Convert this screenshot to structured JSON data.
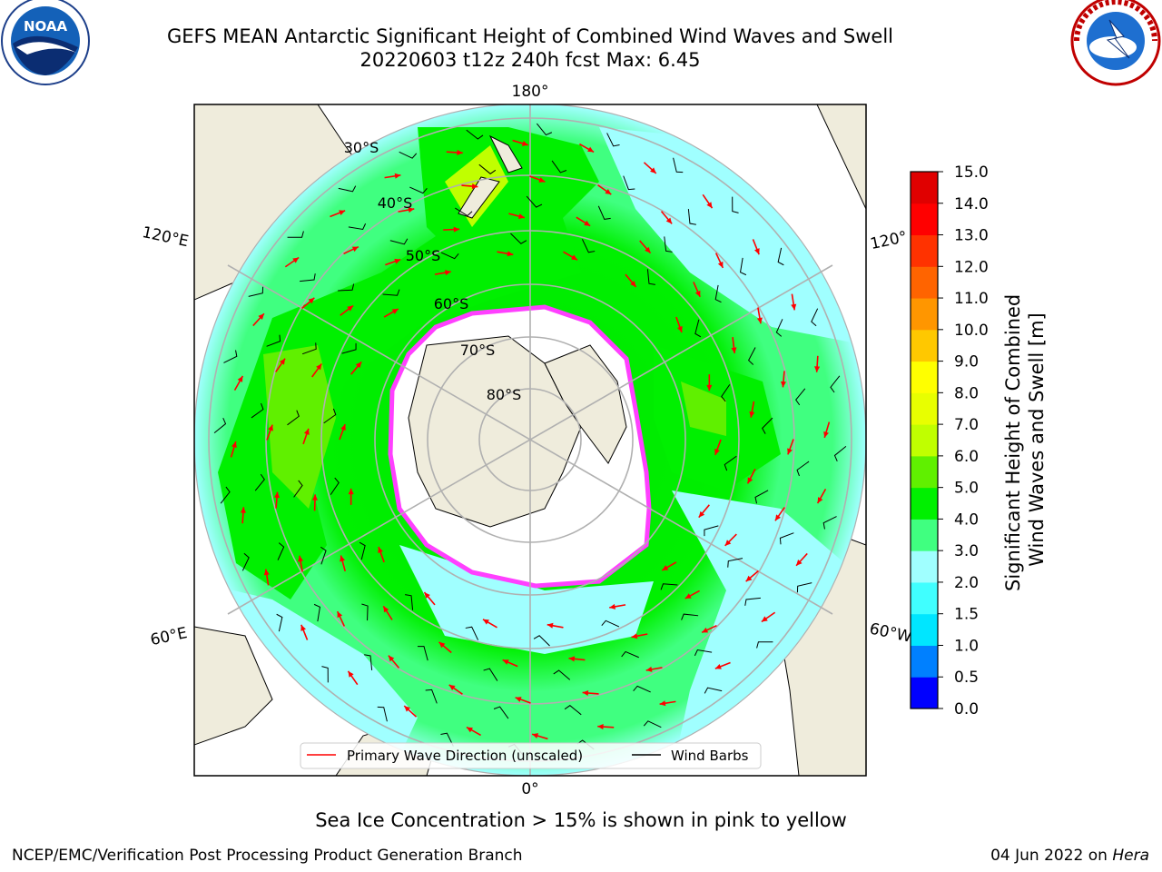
{
  "title": {
    "line1": "GEFS MEAN Antarctic Significant Height of Combined Wind Waves and Swell",
    "line2": "20220603 t12z 240h fcst   Max: 6.45"
  },
  "logos": {
    "left": {
      "name": "noaa-logo",
      "text": "NOAA"
    },
    "right": {
      "name": "nws-logo",
      "text": "NATIONAL WEATHER SERVICE"
    }
  },
  "map": {
    "projection": "south-polar-stereographic",
    "longitude_labels": {
      "top": "180°",
      "bottom": "0°",
      "left_upper": "120°E",
      "left_lower": "60°E",
      "right_upper": "120°",
      "right_lower": "60°W"
    },
    "latitude_labels": [
      "30°S",
      "40°S",
      "50°S",
      "60°S",
      "70°S",
      "80°S"
    ],
    "colors": {
      "land": "#efecdc",
      "antarctica": "#ffffff",
      "grid": "#b0b0b0",
      "arrow": "#ff0000",
      "barb": "#000000"
    }
  },
  "legend": {
    "items": [
      {
        "label": "Primary Wave Direction (unscaled)",
        "color": "#ff0000"
      },
      {
        "label": "Wind Barbs",
        "color": "#000000"
      }
    ]
  },
  "colorbar": {
    "label_line1": "Significant Height of Combined",
    "label_line2": "Wind Waves and Swell [m]",
    "ticks": [
      "0.0",
      "0.5",
      "1.0",
      "1.5",
      "2.0",
      "3.0",
      "4.0",
      "5.0",
      "6.0",
      "7.0",
      "8.0",
      "9.0",
      "10.0",
      "11.0",
      "12.0",
      "13.0",
      "14.0",
      "15.0"
    ],
    "colors": [
      "#0000ff",
      "#0080ff",
      "#00e6ff",
      "#40ffff",
      "#a0ffff",
      "#40ff80",
      "#00f000",
      "#60f000",
      "#c0ff00",
      "#e8ff00",
      "#ffff00",
      "#ffc800",
      "#ff9600",
      "#ff6400",
      "#ff3200",
      "#ff0000",
      "#e00000"
    ]
  },
  "ice_note": "Sea Ice Concentration > 15% is shown in pink to yellow",
  "footer": {
    "left": "NCEP/EMC/Verification Post Processing Product Generation Branch",
    "right_date": "04 Jun 2022 on ",
    "right_machine": "Hera"
  }
}
